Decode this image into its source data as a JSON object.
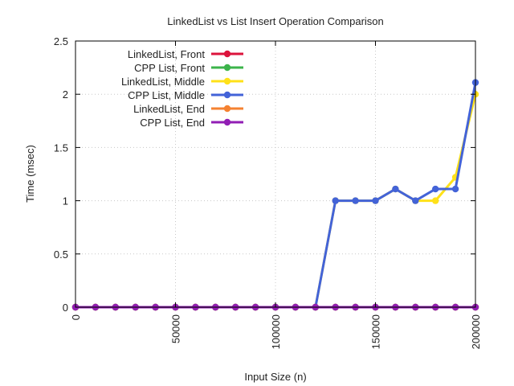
{
  "chart_data": {
    "type": "line",
    "title": "LinkedList vs List Insert Operation Comparison",
    "xlabel": "Input Size (n)",
    "ylabel": "Time (msec)",
    "xlim": [
      0,
      200000
    ],
    "ylim": [
      0,
      2.5
    ],
    "x_ticks": [
      0,
      50000,
      100000,
      150000,
      200000
    ],
    "y_ticks": [
      0,
      0.5,
      1,
      1.5,
      2,
      2.5
    ],
    "y_tick_labels": [
      "0",
      "0.5",
      "1",
      "1.5",
      "2",
      "2.5"
    ],
    "grid": true,
    "legend_position": "top-left",
    "x": [
      0,
      10000,
      20000,
      30000,
      40000,
      50000,
      60000,
      70000,
      80000,
      90000,
      100000,
      110000,
      120000,
      130000,
      140000,
      150000,
      160000,
      170000,
      180000,
      190000,
      200000
    ],
    "series": [
      {
        "name": "LinkedList, Front",
        "color": "#dc143c",
        "values": [
          0,
          0,
          0,
          0,
          0,
          0,
          0,
          0,
          0,
          0,
          0,
          0,
          0,
          0,
          0,
          0,
          0,
          0,
          0,
          0,
          0
        ]
      },
      {
        "name": "CPP List, Front",
        "color": "#3cb44b",
        "values": [
          0,
          0,
          0,
          0,
          0,
          0,
          0,
          0,
          0,
          0,
          0,
          0,
          0,
          0,
          0,
          0,
          0,
          0,
          0,
          0,
          0
        ]
      },
      {
        "name": "LinkedList, Middle",
        "color": "#ffe119",
        "values": [
          0,
          0,
          0,
          0,
          0,
          0,
          0,
          0,
          0,
          0,
          0,
          0,
          0,
          1,
          1,
          1,
          1.11,
          1,
          1,
          1.22,
          2
        ]
      },
      {
        "name": "CPP List, Middle",
        "color": "#4363d8",
        "values": [
          0,
          0,
          0,
          0,
          0,
          0,
          0,
          0,
          0,
          0,
          0,
          0,
          0,
          1,
          1,
          1,
          1.11,
          1,
          1.11,
          1.11,
          2.11
        ]
      },
      {
        "name": "LinkedList, End",
        "color": "#f58231",
        "values": [
          0,
          0,
          0,
          0,
          0,
          0,
          0,
          0,
          0,
          0,
          0,
          0,
          0,
          0,
          0,
          0,
          0,
          0,
          0,
          0,
          0
        ]
      },
      {
        "name": "CPP List, End",
        "color": "#911eb4",
        "values": [
          0,
          0,
          0,
          0,
          0,
          0,
          0,
          0,
          0,
          0,
          0,
          0,
          0,
          0,
          0,
          0,
          0,
          0,
          0,
          0,
          0
        ]
      }
    ]
  }
}
